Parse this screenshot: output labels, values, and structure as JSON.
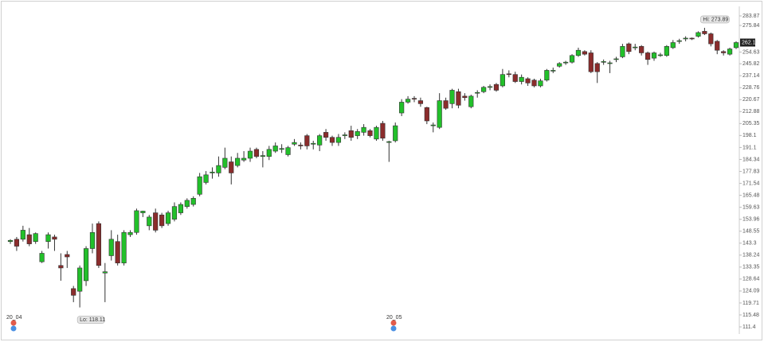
{
  "chart_data": {
    "type": "candlestick",
    "log_scale": true,
    "ylim": [
      111.4,
      283.87
    ],
    "yticks": [
      283.87,
      275.84,
      254.63,
      245.82,
      237.14,
      228.76,
      220.67,
      212.88,
      205.35,
      198.1,
      191.1,
      184.34,
      177.83,
      171.54,
      165.48,
      159.63,
      153.96,
      148.55,
      143.3,
      138.24,
      133.35,
      128.64,
      124.09,
      119.71,
      115.48,
      111.4
    ],
    "x_labels": [
      "20_04",
      "20_05"
    ],
    "high_label": "Hi: 273.89",
    "low_label": "Lo: 118.11",
    "last_price_label": "262.1",
    "up_color": "#22c02a",
    "down_color": "#8b2c2c",
    "open": [
      144,
      145,
      145,
      147,
      144,
      135.5,
      144,
      146,
      134,
      138.5,
      125,
      124,
      128,
      141,
      152,
      131,
      138,
      144,
      135,
      147,
      148,
      157,
      151,
      157,
      156,
      152,
      154,
      157,
      160,
      161,
      166,
      172,
      177,
      177,
      180,
      183,
      181,
      184,
      185,
      190,
      186,
      186,
      189,
      190,
      187,
      193,
      192.5,
      198,
      193,
      192.5,
      200,
      197,
      194,
      198,
      201,
      198,
      200,
      201,
      196,
      205.5,
      194,
      195,
      212,
      219,
      221.5,
      220,
      215.5,
      204,
      203,
      220,
      218,
      226,
      223,
      216,
      225,
      226,
      229,
      231,
      230,
      238.5,
      238,
      233,
      235,
      234,
      230,
      234,
      240.5,
      244,
      246.5,
      247,
      252,
      255,
      254,
      246,
      247,
      246,
      249,
      251,
      261,
      258,
      259,
      254,
      250,
      252,
      252,
      258,
      263,
      265,
      265.5,
      267,
      271,
      269,
      263,
      255,
      253,
      258
    ],
    "high": [
      145,
      146,
      151,
      150,
      148,
      140,
      148,
      147,
      139,
      140,
      126,
      134,
      142,
      152,
      153,
      135,
      149,
      147,
      149,
      149,
      159,
      158,
      156,
      159,
      157,
      158,
      162,
      162,
      164,
      165,
      177,
      178,
      180,
      186,
      191,
      186,
      188,
      189,
      191,
      191,
      189,
      192,
      194,
      193,
      192,
      196,
      194,
      199,
      195,
      199,
      202,
      198,
      199,
      200,
      204,
      202,
      205,
      202,
      204,
      207,
      195,
      206,
      221,
      223,
      223,
      222,
      216,
      206,
      225,
      222,
      228,
      228,
      225,
      224,
      227,
      230,
      231,
      232,
      242,
      241,
      240,
      238,
      236,
      235,
      235,
      242,
      243,
      247,
      248,
      253,
      258,
      256,
      256,
      247,
      249,
      248,
      251,
      261,
      262,
      261,
      260,
      255,
      255,
      254,
      260,
      264,
      265,
      267,
      266,
      271,
      273.89,
      270,
      264,
      256,
      258,
      263
    ],
    "low": [
      143,
      140,
      144,
      142,
      143,
      135,
      141,
      140,
      128,
      133,
      120,
      118.11,
      126,
      139,
      133,
      120,
      136,
      134,
      134,
      146,
      147,
      155,
      149,
      148,
      150,
      151,
      153,
      156,
      159,
      160,
      165,
      171,
      174,
      175,
      179,
      171,
      180,
      183,
      183,
      185,
      180,
      184,
      188,
      188,
      186,
      192,
      190,
      190,
      190,
      189,
      195,
      192,
      192,
      196,
      195,
      196,
      198,
      197,
      195,
      195,
      183,
      194,
      210,
      218,
      219,
      216,
      205,
      200,
      202,
      214,
      215,
      215,
      220,
      215,
      222,
      225,
      227,
      226,
      229,
      236,
      232,
      231,
      230,
      229,
      229,
      233,
      239,
      243,
      245,
      246,
      251,
      252,
      239,
      232,
      245,
      239,
      247,
      250,
      253,
      256,
      252,
      245,
      248,
      251,
      251,
      257,
      261,
      263,
      264,
      266,
      268,
      259,
      253,
      252,
      252,
      257
    ],
    "close": [
      144.5,
      142,
      149,
      143,
      147.5,
      139,
      147,
      145,
      133,
      137.5,
      122.5,
      133,
      141,
      148,
      134,
      131.5,
      145,
      135,
      148,
      148,
      158,
      157.8,
      155,
      149,
      151,
      157,
      160,
      161,
      163,
      164,
      175,
      176,
      177.5,
      181,
      185,
      177,
      185,
      185,
      189,
      186,
      186.5,
      190,
      192,
      190.5,
      191,
      194,
      192,
      192,
      193.5,
      198,
      197,
      194,
      197,
      198.5,
      197,
      200.5,
      203,
      198,
      203,
      196.5,
      194.5,
      204,
      219,
      221,
      221,
      218,
      207,
      204.5,
      220,
      215,
      227,
      217,
      222,
      223,
      225.5,
      229,
      229.5,
      227,
      238,
      238,
      233,
      236,
      232,
      230,
      233.5,
      241,
      241,
      246,
      247,
      252,
      256,
      253,
      240,
      240,
      247.5,
      246.5,
      249.5,
      259,
      255,
      258.5,
      254,
      249,
      254,
      252.5,
      259,
      262,
      263.5,
      265.5,
      265,
      270,
      269,
      261,
      256,
      254,
      257,
      262
    ]
  }
}
